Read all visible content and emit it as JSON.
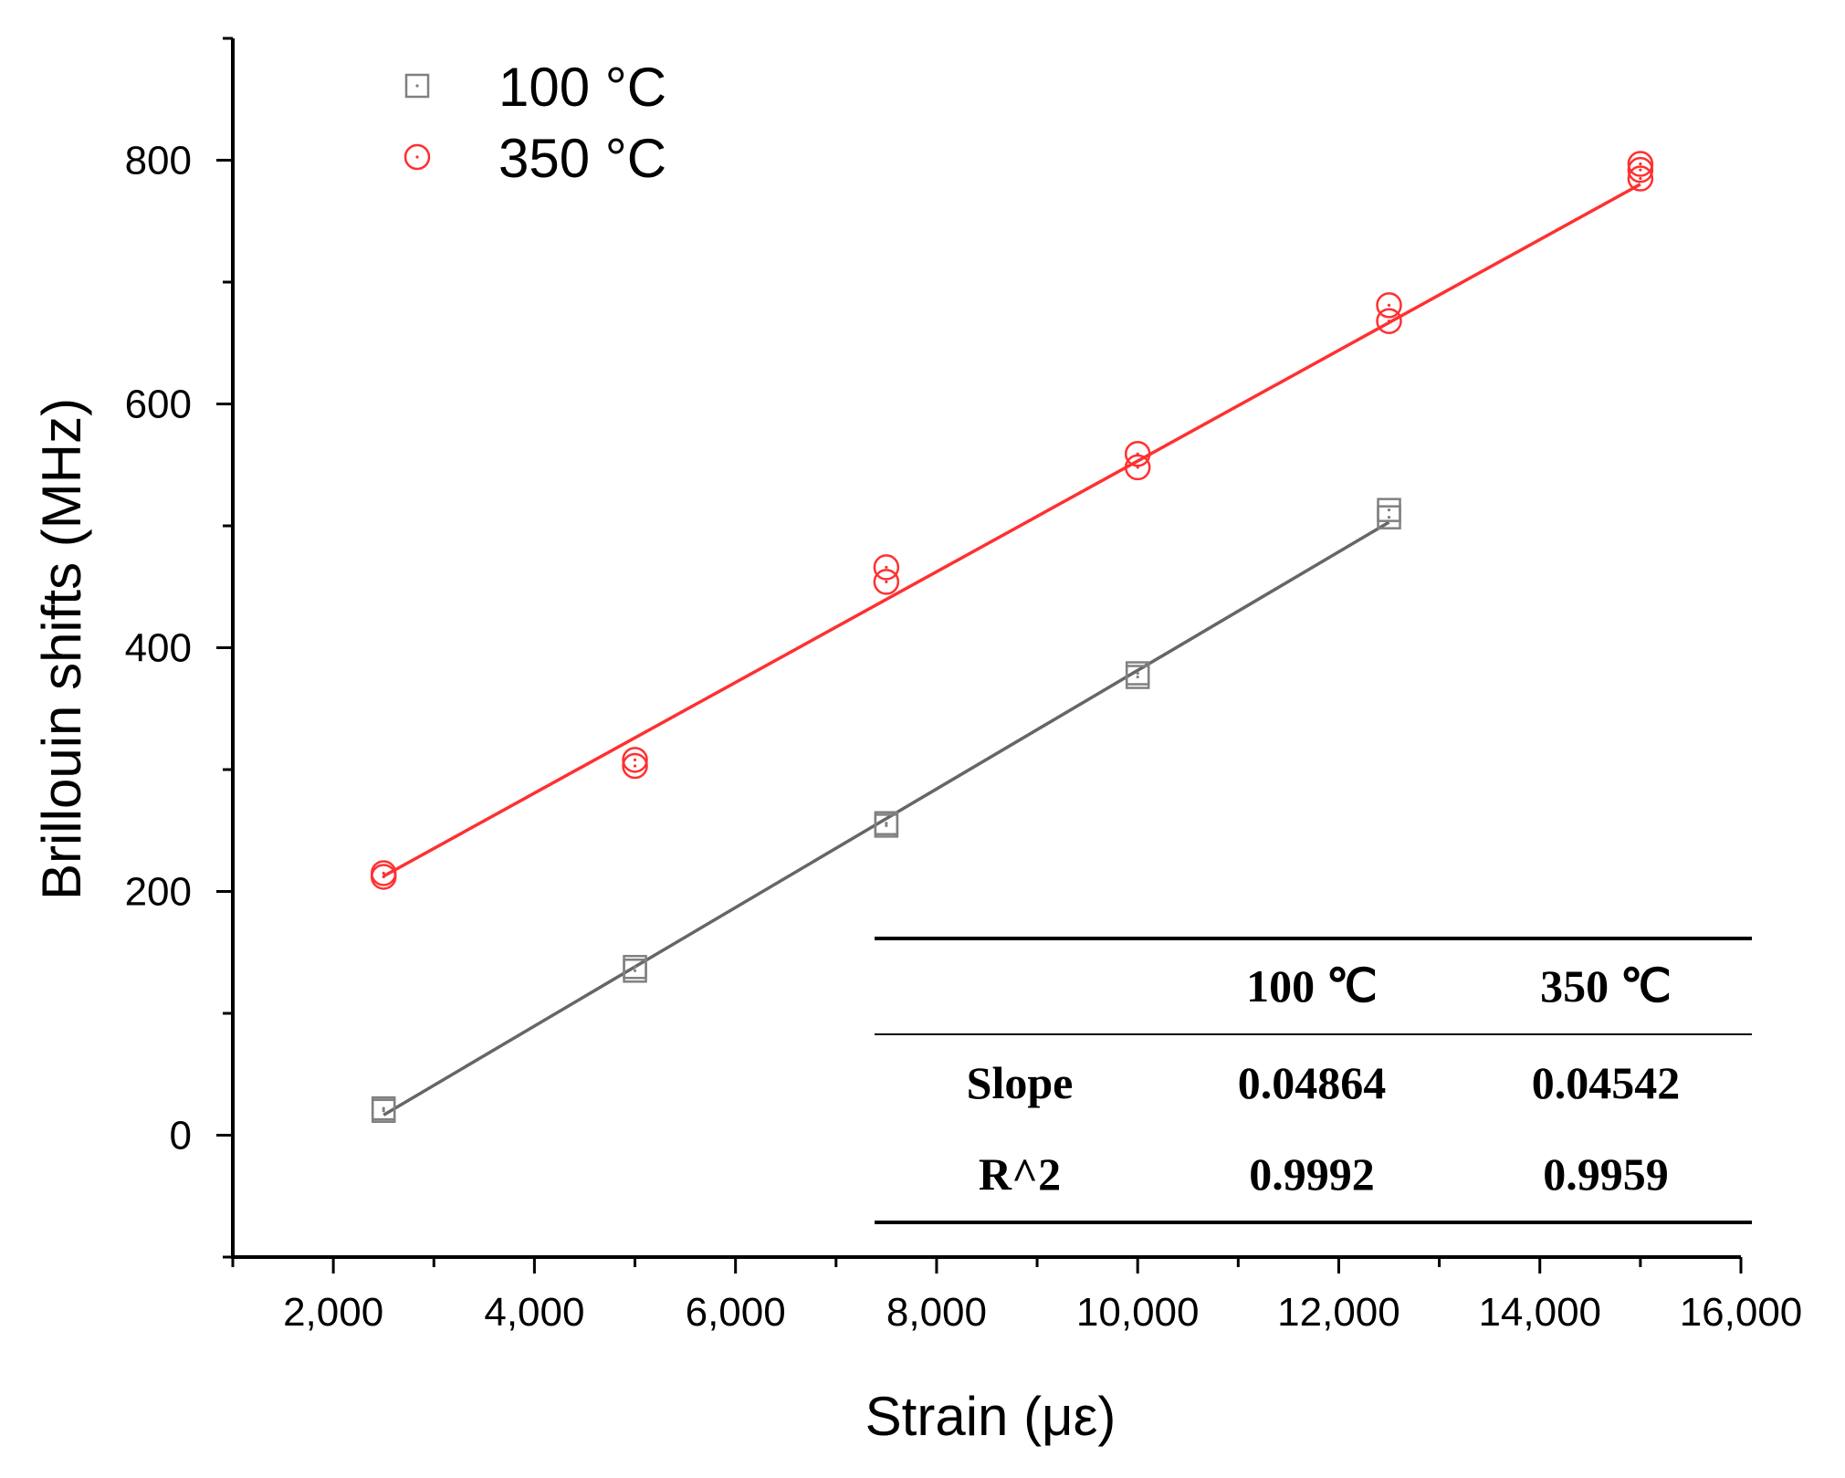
{
  "chart_data": {
    "type": "scatter",
    "title": "",
    "xlabel": "Strain (με)",
    "ylabel": "Brillouin shifts (MHz)",
    "xlim": [
      1000,
      16000
    ],
    "ylim": [
      -100,
      900
    ],
    "x_ticks": [
      2000,
      4000,
      6000,
      8000,
      10000,
      12000,
      14000,
      16000
    ],
    "x_tick_labels": [
      "2,000",
      "4,000",
      "6,000",
      "8,000",
      "10,000",
      "12,000",
      "14,000",
      "16,000"
    ],
    "y_ticks": [
      0,
      200,
      400,
      600,
      800
    ],
    "y_tick_labels": [
      "0",
      "200",
      "400",
      "600",
      "800"
    ],
    "legend_position": "top-left",
    "series": [
      {
        "name": "100 °C",
        "marker": "square",
        "color": "#808080",
        "line_color": "#666666",
        "points": [
          [
            2500,
            20
          ],
          [
            2500,
            22
          ],
          [
            5000,
            135
          ],
          [
            5000,
            138
          ],
          [
            7500,
            254
          ],
          [
            7500,
            256
          ],
          [
            10000,
            376
          ],
          [
            10000,
            379
          ],
          [
            12500,
            507
          ],
          [
            12500,
            513
          ]
        ],
        "fit": {
          "slope": 0.04864,
          "intercept": -105,
          "x_range": [
            2500,
            12500
          ]
        }
      },
      {
        "name": "350 °C",
        "marker": "circle",
        "color": "#ff3030",
        "line_color": "#ff3030",
        "points": [
          [
            2500,
            212
          ],
          [
            2500,
            215
          ],
          [
            5000,
            303
          ],
          [
            5000,
            308
          ],
          [
            7500,
            454
          ],
          [
            7500,
            466
          ],
          [
            10000,
            548
          ],
          [
            10000,
            559
          ],
          [
            12500,
            668
          ],
          [
            12500,
            681
          ],
          [
            15000,
            785
          ],
          [
            15000,
            792
          ],
          [
            15000,
            797
          ]
        ],
        "fit": {
          "slope": 0.04542,
          "intercept": 99,
          "x_range": [
            2500,
            15000
          ]
        }
      }
    ],
    "annotation_table": {
      "headers": [
        "",
        "100  ℃",
        "350  ℃"
      ],
      "rows": [
        [
          "Slope",
          "0.04864",
          "0.04542"
        ],
        [
          "R^2",
          "0.9992",
          "0.9959"
        ]
      ]
    }
  }
}
